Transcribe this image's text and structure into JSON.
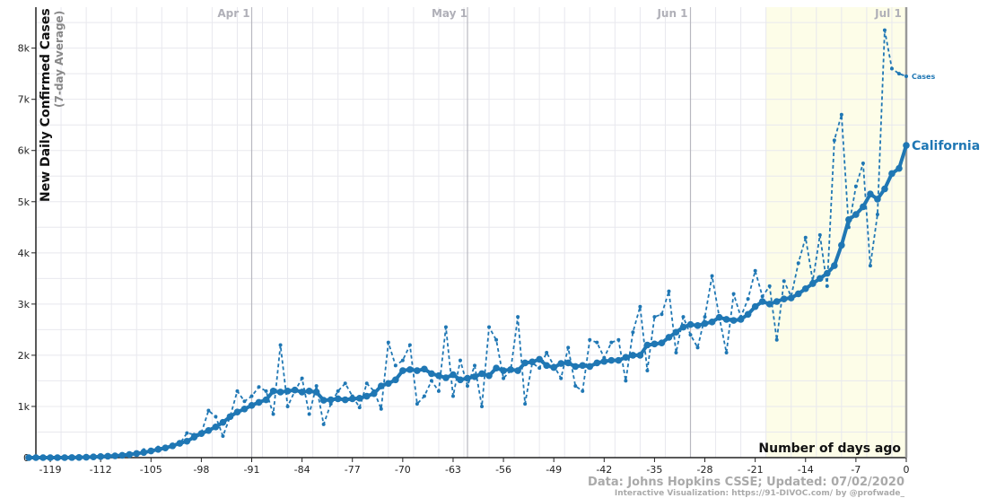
{
  "chart_data": {
    "type": "line",
    "ylabel": "New Daily Confirmed Cases",
    "ylabel_sub": "(7-day Average)",
    "xlabel": "Number of days ago",
    "xlim": [
      -121,
      0
    ],
    "ylim": [
      0,
      8800
    ],
    "x_ticks": [
      -119,
      -112,
      -105,
      -98,
      -91,
      -84,
      -77,
      -70,
      -63,
      -56,
      -49,
      -42,
      -35,
      -28,
      -21,
      -14,
      -7,
      0
    ],
    "y_ticks": [
      0,
      1000,
      2000,
      3000,
      4000,
      5000,
      6000,
      7000,
      8000
    ],
    "y_tick_labels": [
      "0",
      "1k",
      "2k",
      "3k",
      "4k",
      "5k",
      "6k",
      "7k",
      "8k"
    ],
    "month_markers": [
      {
        "label": "Apr 1",
        "x": -91
      },
      {
        "label": "May 1",
        "x": -61
      },
      {
        "label": "Jun 1",
        "x": -30
      },
      {
        "label": "Jul 1",
        "x": 0
      }
    ],
    "grid": true,
    "series": [
      {
        "name": "California",
        "style": "solid",
        "color": "#1f77b4",
        "points": [
          [
            -121,
            0
          ],
          [
            -120,
            0
          ],
          [
            -119,
            0
          ],
          [
            -118,
            0
          ],
          [
            -117,
            0
          ],
          [
            -116,
            0
          ],
          [
            -115,
            2
          ],
          [
            -114,
            4
          ],
          [
            -113,
            8
          ],
          [
            -112,
            14
          ],
          [
            -111,
            20
          ],
          [
            -110,
            27
          ],
          [
            -109,
            35
          ],
          [
            -108,
            45
          ],
          [
            -107,
            60
          ],
          [
            -106,
            80
          ],
          [
            -105,
            100
          ],
          [
            -104,
            130
          ],
          [
            -103,
            160
          ],
          [
            -102,
            190
          ],
          [
            -101,
            230
          ],
          [
            -100,
            280
          ],
          [
            -99,
            320
          ],
          [
            -98,
            400
          ],
          [
            -97,
            470
          ],
          [
            -96,
            530
          ],
          [
            -95,
            600
          ],
          [
            -94,
            690
          ],
          [
            -93,
            800
          ],
          [
            -92,
            890
          ],
          [
            -91,
            950
          ],
          [
            -90,
            1020
          ],
          [
            -89,
            1080
          ],
          [
            -88,
            1130
          ],
          [
            -87,
            1300
          ],
          [
            -86,
            1280
          ],
          [
            -85,
            1300
          ],
          [
            -84,
            1320
          ],
          [
            -83,
            1280
          ],
          [
            -82,
            1300
          ],
          [
            -81,
            1280
          ],
          [
            -80,
            1120
          ],
          [
            -79,
            1130
          ],
          [
            -78,
            1150
          ],
          [
            -77,
            1130
          ],
          [
            -76,
            1150
          ],
          [
            -75,
            1160
          ],
          [
            -74,
            1200
          ],
          [
            -73,
            1250
          ],
          [
            -72,
            1400
          ],
          [
            -71,
            1450
          ],
          [
            -70,
            1520
          ],
          [
            -69,
            1700
          ],
          [
            -68,
            1720
          ],
          [
            -67,
            1700
          ],
          [
            -66,
            1730
          ],
          [
            -65,
            1640
          ],
          [
            -64,
            1600
          ],
          [
            -63,
            1560
          ],
          [
            -62,
            1620
          ],
          [
            -61,
            1520
          ],
          [
            -60,
            1550
          ],
          [
            -59,
            1580
          ],
          [
            -58,
            1640
          ],
          [
            -57,
            1600
          ],
          [
            -56,
            1750
          ],
          [
            -55,
            1700
          ],
          [
            -54,
            1720
          ],
          [
            -53,
            1700
          ],
          [
            -52,
            1850
          ],
          [
            -51,
            1870
          ],
          [
            -50,
            1920
          ],
          [
            -49,
            1800
          ],
          [
            -48,
            1760
          ],
          [
            -47,
            1840
          ],
          [
            -46,
            1850
          ],
          [
            -45,
            1780
          ],
          [
            -44,
            1800
          ],
          [
            -43,
            1780
          ],
          [
            -42,
            1850
          ],
          [
            -41,
            1880
          ],
          [
            -40,
            1900
          ],
          [
            -39,
            1900
          ],
          [
            -38,
            1960
          ],
          [
            -37,
            2000
          ],
          [
            -36,
            2000
          ],
          [
            -35,
            2200
          ],
          [
            -34,
            2220
          ],
          [
            -33,
            2240
          ],
          [
            -32,
            2350
          ],
          [
            -31,
            2450
          ],
          [
            -30,
            2550
          ],
          [
            -29,
            2600
          ],
          [
            -28,
            2580
          ],
          [
            -27,
            2620
          ],
          [
            -26,
            2650
          ],
          [
            -25,
            2740
          ],
          [
            -24,
            2700
          ],
          [
            -23,
            2680
          ],
          [
            -22,
            2700
          ],
          [
            -21,
            2800
          ],
          [
            -20,
            2950
          ],
          [
            -19,
            3050
          ],
          [
            -18,
            3000
          ],
          [
            -17,
            3050
          ],
          [
            -16,
            3100
          ],
          [
            -15,
            3120
          ],
          [
            -14,
            3200
          ],
          [
            -13,
            3300
          ],
          [
            -12,
            3400
          ],
          [
            -11,
            3500
          ],
          [
            -10,
            3600
          ],
          [
            -9,
            3750
          ],
          [
            -8,
            4150
          ],
          [
            -7,
            4650
          ],
          [
            -6,
            4750
          ],
          [
            -5,
            4900
          ],
          [
            -4,
            5150
          ],
          [
            -3,
            5050
          ],
          [
            -2,
            5250
          ],
          [
            -1,
            5550
          ],
          [
            0,
            5650
          ],
          [
            1,
            6100
          ]
        ]
      },
      {
        "name": "Cases",
        "style": "dashed",
        "color": "#1f77b4",
        "points": [
          [
            -121,
            0
          ],
          [
            -120,
            0
          ],
          [
            -119,
            0
          ],
          [
            -118,
            0
          ],
          [
            -117,
            5
          ],
          [
            -116,
            10
          ],
          [
            -115,
            5
          ],
          [
            -114,
            15
          ],
          [
            -113,
            20
          ],
          [
            -112,
            30
          ],
          [
            -111,
            25
          ],
          [
            -110,
            50
          ],
          [
            -109,
            40
          ],
          [
            -108,
            60
          ],
          [
            -107,
            90
          ],
          [
            -106,
            100
          ],
          [
            -105,
            150
          ],
          [
            -104,
            110
          ],
          [
            -103,
            200
          ],
          [
            -102,
            180
          ],
          [
            -101,
            220
          ],
          [
            -100,
            270
          ],
          [
            -99,
            480
          ],
          [
            -98,
            450
          ],
          [
            -97,
            480
          ],
          [
            -96,
            920
          ],
          [
            -95,
            800
          ],
          [
            -94,
            420
          ],
          [
            -93,
            800
          ],
          [
            -92,
            1300
          ],
          [
            -91,
            1100
          ],
          [
            -90,
            1200
          ],
          [
            -89,
            1380
          ],
          [
            -88,
            1300
          ],
          [
            -87,
            850
          ],
          [
            -86,
            2200
          ],
          [
            -85,
            1000
          ],
          [
            -84,
            1300
          ],
          [
            -83,
            1550
          ],
          [
            -82,
            850
          ],
          [
            -81,
            1400
          ],
          [
            -80,
            650
          ],
          [
            -79,
            1050
          ],
          [
            -78,
            1300
          ],
          [
            -77,
            1450
          ],
          [
            -76,
            1200
          ],
          [
            -75,
            980
          ],
          [
            -74,
            1450
          ],
          [
            -73,
            1300
          ],
          [
            -72,
            950
          ],
          [
            -71,
            2250
          ],
          [
            -70,
            1800
          ],
          [
            -69,
            1900
          ],
          [
            -68,
            2200
          ],
          [
            -67,
            1050
          ],
          [
            -66,
            1200
          ],
          [
            -65,
            1500
          ],
          [
            -64,
            1300
          ],
          [
            -63,
            2550
          ],
          [
            -62,
            1200
          ],
          [
            -61,
            1900
          ],
          [
            -60,
            1400
          ],
          [
            -59,
            1800
          ],
          [
            -58,
            1000
          ],
          [
            -57,
            2550
          ],
          [
            -56,
            2300
          ],
          [
            -55,
            1550
          ],
          [
            -54,
            1700
          ],
          [
            -53,
            2750
          ],
          [
            -52,
            1050
          ],
          [
            -51,
            1850
          ],
          [
            -50,
            1750
          ],
          [
            -49,
            2050
          ],
          [
            -48,
            1800
          ],
          [
            -47,
            1550
          ],
          [
            -46,
            2150
          ],
          [
            -45,
            1400
          ],
          [
            -44,
            1300
          ],
          [
            -43,
            2300
          ],
          [
            -42,
            2250
          ],
          [
            -41,
            1950
          ],
          [
            -40,
            2250
          ],
          [
            -39,
            2300
          ],
          [
            -38,
            1500
          ],
          [
            -37,
            2450
          ],
          [
            -36,
            2950
          ],
          [
            -35,
            1700
          ],
          [
            -34,
            2750
          ],
          [
            -33,
            2800
          ],
          [
            -32,
            3250
          ],
          [
            -31,
            2050
          ],
          [
            -30,
            2750
          ],
          [
            -29,
            2400
          ],
          [
            -28,
            2150
          ],
          [
            -27,
            2750
          ],
          [
            -26,
            3550
          ],
          [
            -25,
            2750
          ],
          [
            -24,
            2050
          ],
          [
            -23,
            3200
          ],
          [
            -22,
            2750
          ],
          [
            -21,
            3100
          ],
          [
            -20,
            3650
          ],
          [
            -19,
            3150
          ],
          [
            -18,
            3350
          ],
          [
            -17,
            2300
          ],
          [
            -16,
            3450
          ],
          [
            -15,
            3150
          ],
          [
            -14,
            3800
          ],
          [
            -13,
            4300
          ],
          [
            -12,
            3450
          ],
          [
            -11,
            4350
          ],
          [
            -10,
            3350
          ],
          [
            -9,
            6200
          ],
          [
            -8,
            6700
          ],
          [
            -7,
            4500
          ],
          [
            -6,
            5300
          ],
          [
            -5,
            5750
          ],
          [
            -4,
            3750
          ],
          [
            -3,
            4750
          ],
          [
            -2,
            8350
          ],
          [
            -1,
            7600
          ],
          [
            0,
            7500
          ],
          [
            1,
            7450
          ]
        ]
      }
    ],
    "annotations": {
      "credit_line1": "Data: Johns Hopkins CSSE; Updated: 07/02/2020",
      "credit_line2": "Interactive Visualization: https://91-DIVOC.com/ by @profwade_"
    }
  },
  "colors": {
    "series": "#1f77b4",
    "highlight_band": "#fdfde8"
  }
}
